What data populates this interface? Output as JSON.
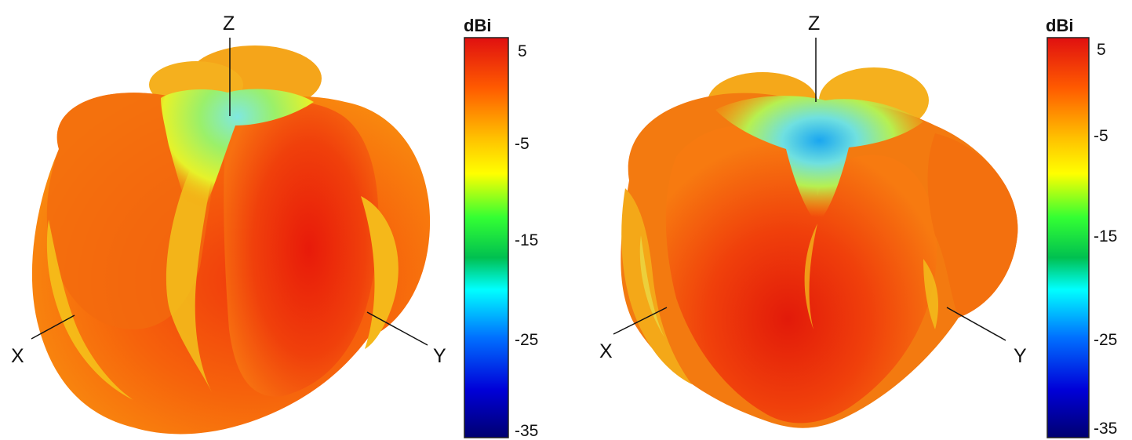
{
  "panels": [
    {
      "axes": {
        "z": "Z",
        "x": "X",
        "y": "Y"
      },
      "colorbar": {
        "unit": "dBi",
        "ticks": [
          "5",
          "-5",
          "-15",
          "-25",
          "-35"
        ]
      }
    },
    {
      "axes": {
        "z": "Z",
        "x": "X",
        "y": "Y"
      },
      "colorbar": {
        "unit": "dBi",
        "ticks": [
          "5",
          "-5",
          "-15",
          "-25",
          "-35"
        ]
      }
    }
  ],
  "colormap": {
    "scale_range": [
      -35,
      5
    ],
    "stops": [
      {
        "value": 5,
        "color": "#e01010"
      },
      {
        "value": 0,
        "color": "#ff8a00"
      },
      {
        "value": -5,
        "color": "#ffff00"
      },
      {
        "value": -10,
        "color": "#33ff33"
      },
      {
        "value": -15,
        "color": "#00c040"
      },
      {
        "value": -20,
        "color": "#00ffff"
      },
      {
        "value": -25,
        "color": "#0050ff"
      },
      {
        "value": -30,
        "color": "#0000d8"
      },
      {
        "value": -35,
        "color": "#000070"
      }
    ]
  }
}
